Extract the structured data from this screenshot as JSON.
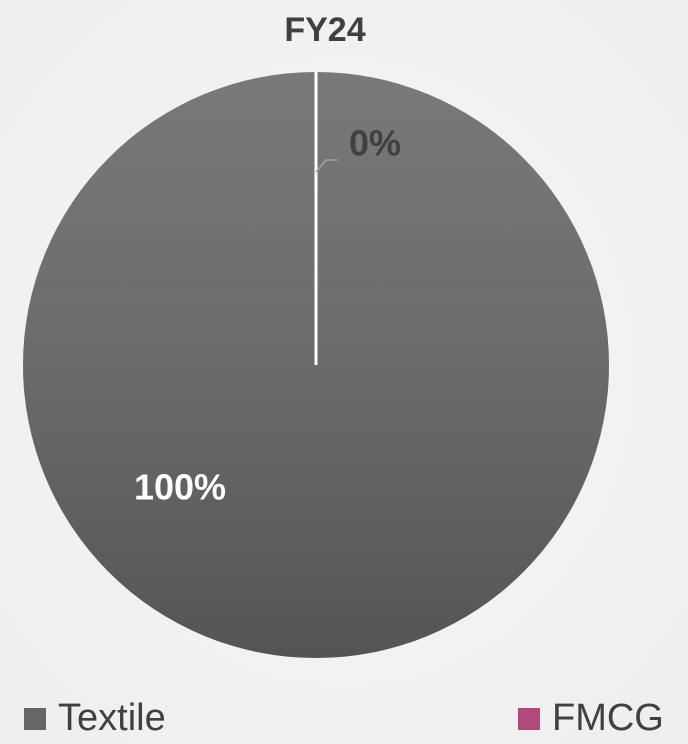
{
  "chart_data": {
    "type": "pie",
    "title": "FY24",
    "categories": [
      "Textile",
      "FMCG"
    ],
    "values": [
      100,
      0
    ],
    "value_labels": [
      "100%",
      "0%"
    ],
    "colors": [
      "#666668",
      "#b5487a"
    ],
    "legend": "bottom"
  }
}
